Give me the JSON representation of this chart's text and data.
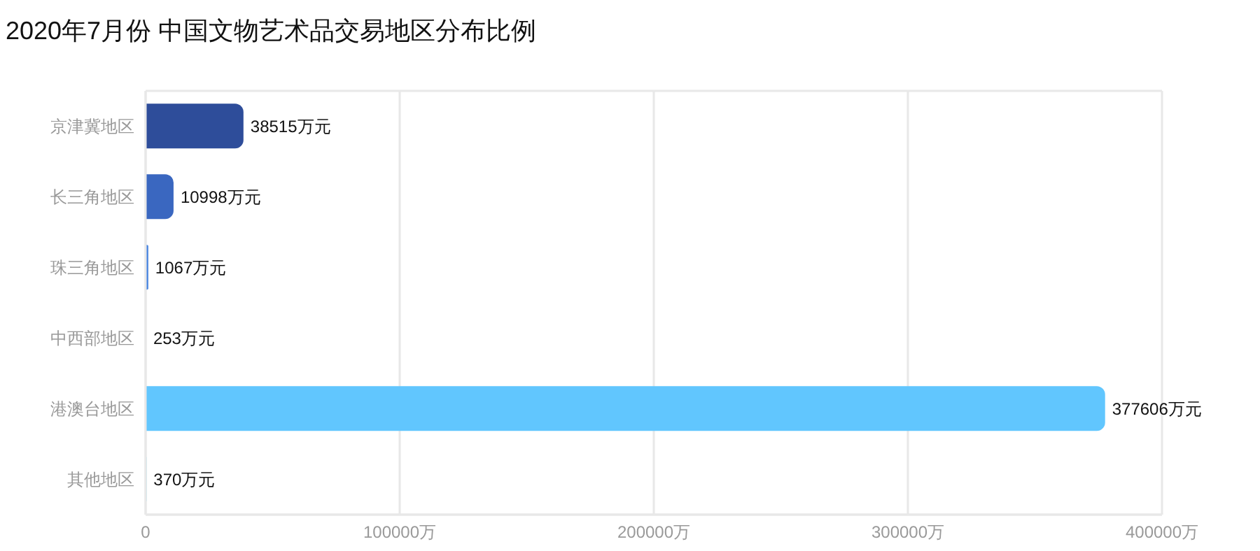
{
  "chart_data": {
    "type": "bar",
    "orientation": "horizontal",
    "title": "2020年7月份 中国文物艺术品交易地区分布比例",
    "categories": [
      "京津冀地区",
      "长三角地区",
      "珠三角地区",
      "中西部地区",
      "港澳台地区",
      "其他地区"
    ],
    "values": [
      38515,
      10998,
      1067,
      253,
      377606,
      370
    ],
    "colors": [
      "#2e4d9a",
      "#3a67c0",
      "#4a86e0",
      "#8fcaf5",
      "#61c6fe",
      "#7ad6f0"
    ],
    "value_labels": [
      "38515万元",
      "10998万元",
      "1067万元",
      "253万元",
      "377606万元",
      "370万元"
    ],
    "xlim": [
      0,
      400000
    ],
    "xticks": [
      0,
      {
        "value": 100000,
        "label": "100000万"
      },
      {
        "value": 200000,
        "label": "200000万"
      },
      {
        "value": 300000,
        "label": "300000万"
      },
      {
        "value": 400000,
        "label": "400000万"
      }
    ],
    "grid": "x",
    "legend": false
  }
}
